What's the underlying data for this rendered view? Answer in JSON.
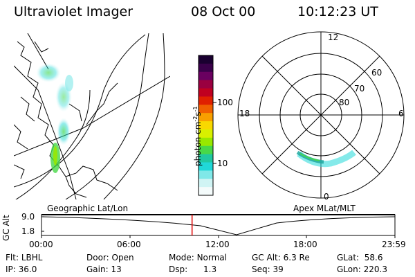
{
  "header": {
    "title": "Ultraviolet Imager",
    "date": "08 Oct 00",
    "time": "10:12:23 UT"
  },
  "colorbar": {
    "label": "photon cm",
    "label_exp1": "-2",
    "label_mid": "s",
    "label_exp2": "-1",
    "ticks": [
      "100",
      "10"
    ],
    "colors": [
      "#1a0030",
      "#3a004a",
      "#6a0060",
      "#9a0040",
      "#c00020",
      "#e02000",
      "#f06000",
      "#f8a000",
      "#f8d800",
      "#d8f000",
      "#98e800",
      "#48d848",
      "#20c8a0",
      "#20d8d8",
      "#80e8e8",
      "#d0f4f4",
      "#f4fbfb"
    ]
  },
  "geo_panel": {
    "caption": "Geographic Lat/Lon"
  },
  "polar_panel": {
    "caption": "Apex MLat/MLT",
    "mlt_labels": {
      "top": "12",
      "left": "18",
      "right": "6",
      "bottom": "0"
    },
    "lat_labels": [
      "60",
      "70",
      "80"
    ]
  },
  "timeline": {
    "ylabel": "GC Alt",
    "ymax": "9.0",
    "ymin": "1.8",
    "ticks": [
      "00:00",
      "06:00",
      "12:00",
      "18:00",
      "23:59"
    ],
    "current_time_fraction": 0.426
  },
  "info": {
    "row1": [
      {
        "label": "Flt:",
        "value": "LBHL"
      },
      {
        "label": "Door:",
        "value": "Open"
      },
      {
        "label": "Mode:",
        "value": "Normal"
      },
      {
        "label": "GC Alt:",
        "value": "6.3 Re"
      },
      {
        "label": "GLat:",
        "value": "58.6"
      }
    ],
    "row2": [
      {
        "label": "IP:",
        "value": "36.0"
      },
      {
        "label": "Gain:",
        "value": "13"
      },
      {
        "label": "Dsp:",
        "value": "1.3"
      },
      {
        "label": "Seq:",
        "value": "39"
      },
      {
        "label": "GLon:",
        "value": "220.3"
      }
    ]
  }
}
